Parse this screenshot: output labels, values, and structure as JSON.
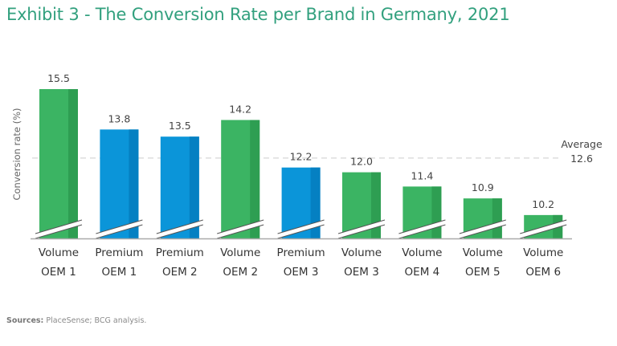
{
  "chart_data": {
    "type": "bar",
    "title": "Exhibit 3 - The Conversion Rate per Brand in Germany, 2021",
    "ylabel": "Conversion rate (%)",
    "xlabel": "",
    "axis_broken": true,
    "categories": [
      [
        "Volume",
        "OEM 1"
      ],
      [
        "Premium",
        "OEM 1"
      ],
      [
        "Premium",
        "OEM 2"
      ],
      [
        "Volume",
        "OEM 2"
      ],
      [
        "Premium",
        "OEM 3"
      ],
      [
        "Volume",
        "OEM 3"
      ],
      [
        "Volume",
        "OEM 4"
      ],
      [
        "Volume",
        "OEM 5"
      ],
      [
        "Volume",
        "OEM 6"
      ]
    ],
    "values": [
      15.5,
      13.8,
      13.5,
      14.2,
      12.2,
      12.0,
      11.4,
      10.9,
      10.2
    ],
    "value_labels": [
      "15.5",
      "13.8",
      "13.5",
      "14.2",
      "12.2",
      "12.0",
      "11.4",
      "10.9",
      "10.2"
    ],
    "segments": [
      "Volume",
      "Premium",
      "Premium",
      "Volume",
      "Premium",
      "Volume",
      "Volume",
      "Volume",
      "Volume"
    ],
    "average": {
      "label": "Average",
      "value": 12.6,
      "value_label": "12.6"
    },
    "colors": {
      "Volume": "#3bb463",
      "Volume_dark": "#2e9e52",
      "Premium": "#0b95d9",
      "Premium_dark": "#0580c2",
      "title": "#32a07e"
    }
  },
  "source": {
    "label": "Sources:",
    "text": "PlaceSense; BCG analysis."
  }
}
